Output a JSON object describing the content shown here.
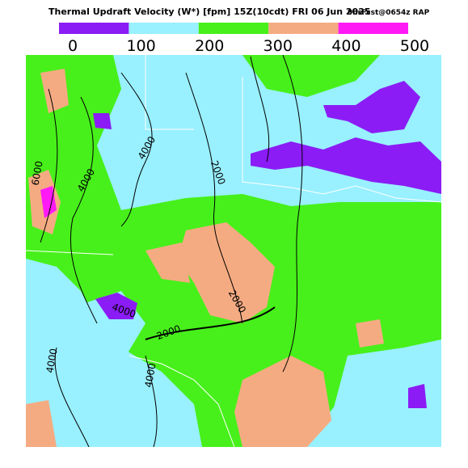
{
  "header": {
    "title": "Thermal Updraft Velocity (W*) [fpm] 15Z(10cdt) FRI 06 Jun 2025",
    "run": "9hrFcst@0654z RAP"
  },
  "colorbar": {
    "ticks": [
      0,
      100,
      200,
      300,
      400,
      500
    ],
    "colors": [
      "#8b1cf5",
      "#99f0ff",
      "#47f01a",
      "#f5ab82",
      "#ff1af5"
    ]
  },
  "contour_labels": [
    "4000",
    "2000",
    "4000",
    "6000",
    "2000",
    "2000",
    "4000",
    "4000",
    "4000"
  ]
}
